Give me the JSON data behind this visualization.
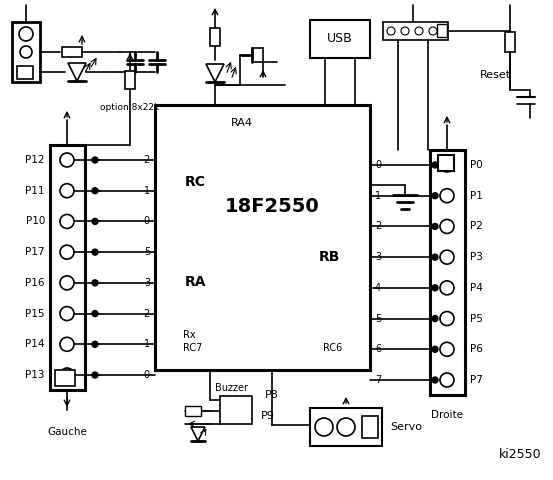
{
  "bg_color": "#ffffff",
  "title": "ki2550",
  "chip_label": "18F2550",
  "chip_sublabel": "RA4",
  "left_pins": [
    "P12",
    "P11",
    "P10",
    "P17",
    "P16",
    "P15",
    "P14",
    "P13"
  ],
  "right_pins": [
    "P0",
    "P1",
    "P2",
    "P3",
    "P4",
    "P5",
    "P6",
    "P7"
  ],
  "rc_pins": [
    "2",
    "1",
    "0",
    "5",
    "3",
    "2",
    "1",
    "0"
  ],
  "rb_pins": [
    "0",
    "1",
    "2",
    "3",
    "4",
    "5",
    "6",
    "7"
  ],
  "rc_label": "RC",
  "ra_label": "RA",
  "rb_label": "RB",
  "rx_label": "Rx",
  "rc7_label": "RC7",
  "rc6_label": "RC6",
  "gauche_label": "Gauche",
  "droite_label": "Droite",
  "servo_label": "Servo",
  "buzzer_label": "Buzzer",
  "p8_label": "P8",
  "p9_label": "P9",
  "usb_label": "USB",
  "reset_label": "Reset",
  "option_label": "option 8x22k"
}
